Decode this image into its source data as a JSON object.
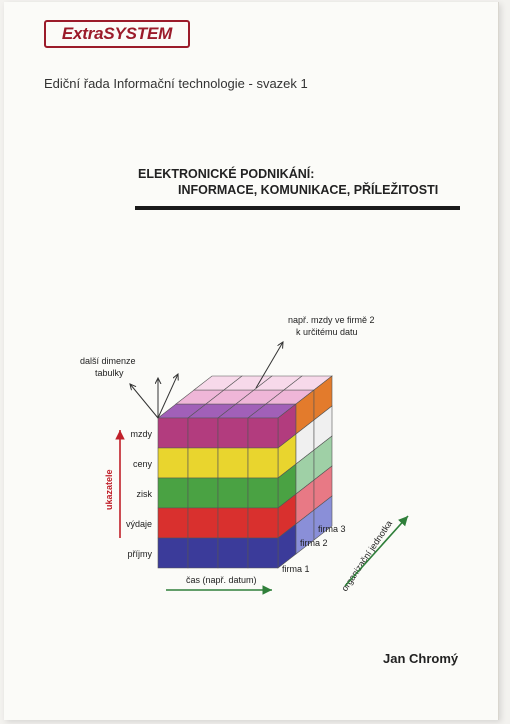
{
  "publisher_logo": "ExtraSYSTEM",
  "series_line": "Ediční řada Informační technologie - svazek 1",
  "title": {
    "line1": "ELEKTRONICKÉ PODNIKÁNÍ:",
    "line2": "INFORMACE, KOMUNIKACE, PŘÍLEŽITOSTI"
  },
  "author": "Jan Chromý",
  "figure": {
    "annotation_top_line1": "např. mzdy ve firmě 2",
    "annotation_top_line2": "k určitému datu",
    "other_dims_line1": "další dimenze",
    "other_dims_line2": "tabulky",
    "axis_y": "ukazatele",
    "axis_x": "čas (např. datum)",
    "axis_z": "organizační jednotka",
    "rows": [
      {
        "label": "mzdy",
        "color": "#b23c7e"
      },
      {
        "label": "ceny",
        "color": "#e9d52e"
      },
      {
        "label": "zisk",
        "color": "#4aa243"
      },
      {
        "label": "výdaje",
        "color": "#d9302e"
      },
      {
        "label": "příjmy",
        "color": "#3b3b9a"
      }
    ],
    "firms": [
      "firma 1",
      "firma 2",
      "firma 3"
    ],
    "side_colors": [
      "#e37b2c",
      "#f0f0f0",
      "#9fd0a6",
      "#e87985",
      "#8a8fd8"
    ],
    "top_colors": [
      "#a160b8",
      "#efb6d8",
      "#f7d9ea"
    ]
  }
}
